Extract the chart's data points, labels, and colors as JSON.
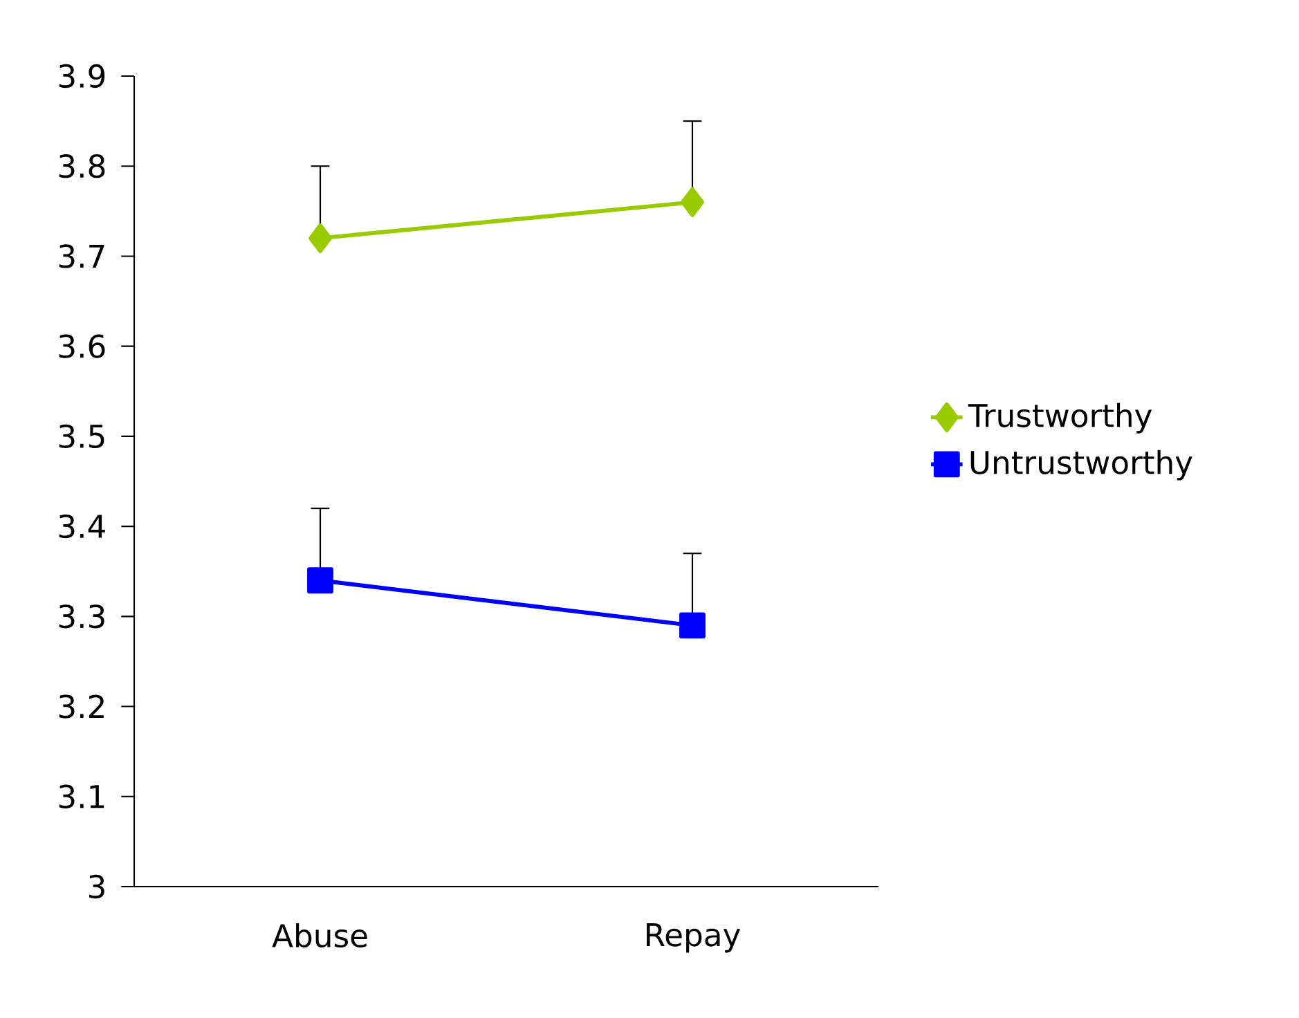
{
  "chart_data": {
    "type": "line",
    "categories": [
      "Abuse",
      "Repay"
    ],
    "series": [
      {
        "name": "Trustworthy",
        "color": "#99cc00",
        "marker": "diamond",
        "values": [
          3.72,
          3.76
        ],
        "errors": [
          [
            3.72,
            3.8
          ],
          [
            3.76,
            3.85
          ]
        ]
      },
      {
        "name": "Untrustworthy",
        "color": "#0000ff",
        "marker": "square",
        "values": [
          3.34,
          3.29
        ],
        "errors": [
          [
            3.34,
            3.42
          ],
          [
            3.29,
            3.37
          ]
        ]
      }
    ],
    "ylim": [
      3,
      3.9
    ],
    "yticks": [
      3,
      3.1,
      3.2,
      3.3,
      3.4,
      3.5,
      3.6,
      3.7,
      3.8,
      3.9
    ],
    "grid": false,
    "legend": "right"
  }
}
